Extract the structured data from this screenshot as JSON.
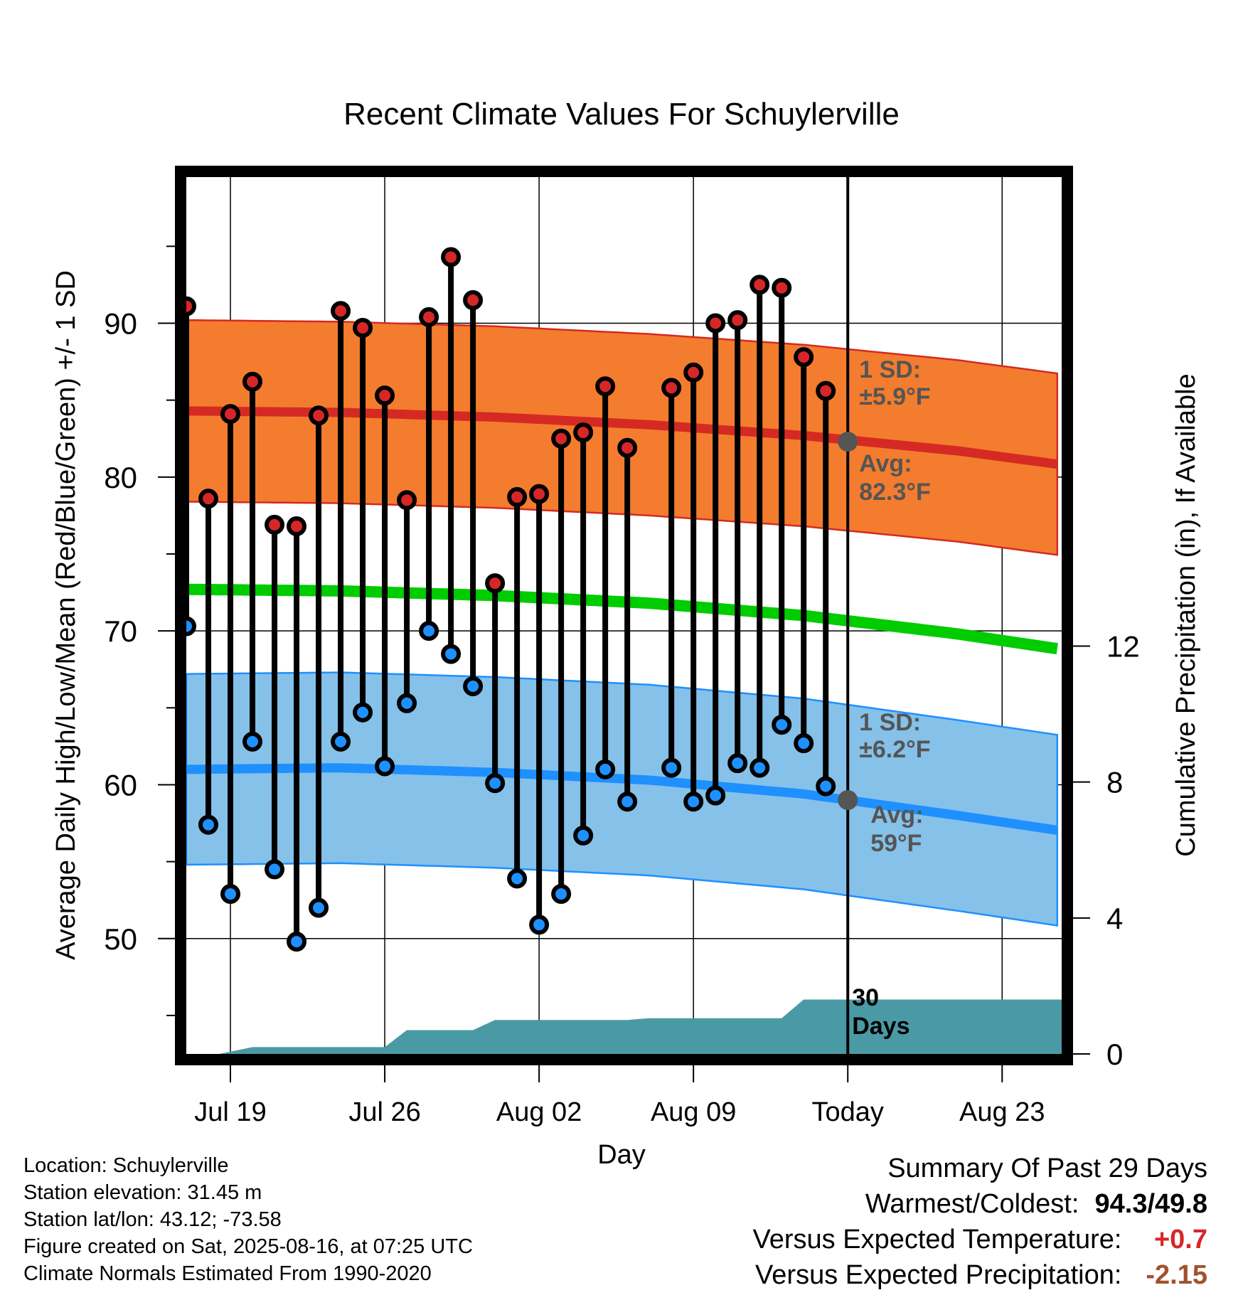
{
  "chart_data": {
    "type": "line",
    "title": "Recent Climate Values For Schuylerville",
    "xlabel": "Day",
    "ylabel_left": "Average Daily High/Low/Mean (Red/Blue/Green) +/- 1 SD",
    "ylabel_right": "Cumulative Precipitation (in), If Available",
    "x_ticks": [
      "Jul 19",
      "Jul 26",
      "Aug 02",
      "Aug 09",
      "Today",
      "Aug 23"
    ],
    "x_tick_days": [
      0,
      7,
      14,
      21,
      28,
      35
    ],
    "x_range_days": [
      -2.0,
      37.7
    ],
    "ylim_left": [
      42.5,
      99.5
    ],
    "y_ticks_left": [
      50,
      60,
      70,
      80,
      90
    ],
    "ylim_right": [
      0,
      25.8
    ],
    "y_ticks_right": [
      0,
      4,
      8,
      12
    ],
    "grid": true,
    "daily_days": [
      -2,
      -1,
      0,
      1,
      2,
      3,
      4,
      5,
      6,
      7,
      8,
      9,
      10,
      11,
      12,
      13,
      14,
      15,
      16,
      17,
      18,
      19,
      20,
      21,
      22,
      23,
      24,
      25,
      26,
      27
    ],
    "series": [
      {
        "name": "High",
        "color": "#d62728",
        "values": [
          91.1,
          78.6,
          84.1,
          86.2,
          76.9,
          76.8,
          84.0,
          90.8,
          89.7,
          85.3,
          78.5,
          90.4,
          94.3,
          91.5,
          73.1,
          78.7,
          78.9,
          82.5,
          82.9,
          85.9,
          81.9,
          null,
          85.8,
          86.8,
          90.0,
          90.2,
          92.5,
          92.3,
          87.8,
          85.6
        ]
      },
      {
        "name": "Low",
        "color": "#1e90ff",
        "values": [
          70.3,
          57.4,
          52.9,
          62.8,
          54.5,
          49.8,
          52.0,
          62.8,
          64.7,
          61.2,
          65.3,
          70.0,
          68.5,
          66.4,
          60.1,
          53.9,
          50.9,
          52.9,
          56.7,
          61.0,
          58.9,
          null,
          61.1,
          58.9,
          59.3,
          61.4,
          61.1,
          63.9,
          62.7,
          59.9
        ]
      }
    ],
    "normals": {
      "days": [
        -2,
        5,
        12,
        19,
        26,
        33,
        37.7
      ],
      "high_avg": [
        84.3,
        84.2,
        83.9,
        83.4,
        82.7,
        81.7,
        80.8
      ],
      "low_avg": [
        61.0,
        61.1,
        60.8,
        60.3,
        59.4,
        58.0,
        57.0
      ],
      "mean_avg": [
        72.7,
        72.6,
        72.3,
        71.8,
        71.0,
        69.8,
        68.8
      ],
      "high_sd": 5.9,
      "low_sd": 6.2
    },
    "precip_cumulative": {
      "days": [
        -2,
        -0.5,
        1,
        2,
        3,
        4,
        5,
        6,
        7,
        8,
        9,
        10,
        11,
        12,
        13,
        14,
        15,
        16,
        17,
        18,
        19,
        20,
        21,
        22,
        23,
        24,
        25,
        26,
        27,
        28,
        29,
        30,
        31,
        32,
        33,
        34,
        35,
        36,
        37.7
      ],
      "values": [
        0,
        0,
        0.2,
        0.2,
        0.2,
        0.2,
        0.2,
        0.2,
        0.2,
        0.7,
        0.7,
        0.7,
        0.7,
        1.0,
        1.0,
        1.0,
        1.0,
        1.0,
        1.0,
        1.0,
        1.05,
        1.05,
        1.05,
        1.05,
        1.05,
        1.05,
        1.05,
        1.6,
        1.6,
        1.6,
        1.6,
        1.6,
        1.6,
        1.6,
        1.6,
        1.6,
        1.6,
        1.6,
        1.6
      ]
    },
    "annotations": {
      "high_sd_label": "1 SD:",
      "high_sd_value": "±5.9°F",
      "high_avg_label": "Avg:",
      "high_avg_value": "82.3°F",
      "high_today": 82.3,
      "low_sd_label": "1 SD:",
      "low_sd_value": "±6.2°F",
      "low_avg_label": "Avg:",
      "low_avg_value": "59°F",
      "low_today": 59.0,
      "window_label_1": "30",
      "window_label_2": "Days",
      "today_day": 28
    }
  },
  "colors": {
    "high_band": "#f47c2e",
    "high_line": "#d42a23",
    "low_band": "#85c1e9",
    "low_line": "#1e90ff",
    "mean_line": "#00cc00",
    "precip_fill": "#4a9aa5",
    "annotation_text": "#555555",
    "today_marker": "#555555",
    "warm_anomaly": "#d62728",
    "precip_anomaly": "#a0522d"
  },
  "footer": {
    "location": "Location: Schuylerville",
    "elevation": "Station elevation: 31.45 m",
    "latlon": "Station lat/lon: 43.12; -73.58",
    "created": "Figure created on Sat, 2025-08-16, at 07:25 UTC",
    "normals": "Climate Normals Estimated From 1990-2020"
  },
  "summary": {
    "title": "Summary Of Past 29 Days",
    "warm_cold_label": "Warmest/Coldest:",
    "warmest": "94.3",
    "separator": "/",
    "coldest": "49.8",
    "temp_label": "Versus Expected Temperature:",
    "temp_value": "+0.7",
    "precip_label": "Versus Expected Precipitation:",
    "precip_value": "-2.15"
  }
}
